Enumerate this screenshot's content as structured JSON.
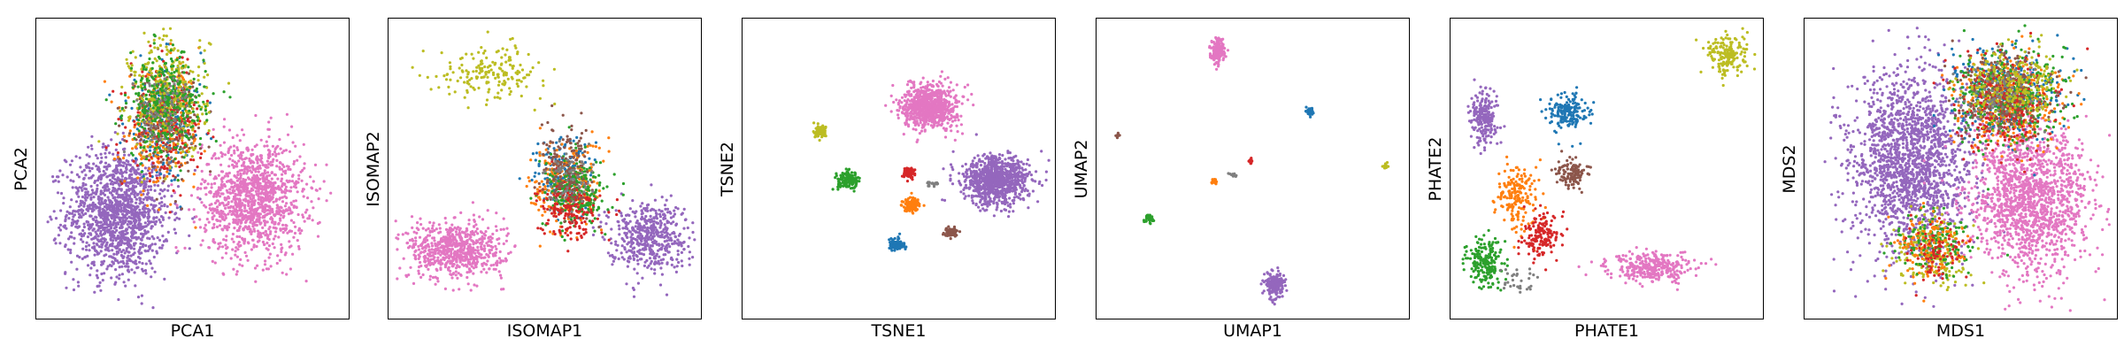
{
  "colors": {
    "blue": "#1f77b4",
    "orange": "#ff7f0e",
    "green": "#2ca02c",
    "red": "#d62728",
    "purple": "#9467bd",
    "brown": "#8c564b",
    "pink": "#e377c2",
    "gray": "#7f7f7f",
    "olive": "#bcbd22"
  },
  "chart_data": [
    {
      "type": "scatter",
      "xlabel": "PCA1",
      "ylabel": "PCA2",
      "grid": false,
      "xticks": [],
      "yticks": [],
      "xlim": [
        0,
        1
      ],
      "ylim": [
        0,
        1
      ],
      "clusters": [
        {
          "color": "purple",
          "cx": 0.25,
          "cy": 0.35,
          "sx": 0.085,
          "sy": 0.11,
          "n": 1400
        },
        {
          "color": "pink",
          "cx": 0.7,
          "cy": 0.4,
          "sx": 0.085,
          "sy": 0.1,
          "n": 1200
        },
        {
          "color": "blue",
          "cx": 0.4,
          "cy": 0.68,
          "sx": 0.065,
          "sy": 0.1,
          "n": 220
        },
        {
          "color": "orange",
          "cx": 0.4,
          "cy": 0.64,
          "sx": 0.065,
          "sy": 0.1,
          "n": 260
        },
        {
          "color": "red",
          "cx": 0.41,
          "cy": 0.66,
          "sx": 0.06,
          "sy": 0.09,
          "n": 220
        },
        {
          "color": "brown",
          "cx": 0.4,
          "cy": 0.68,
          "sx": 0.06,
          "sy": 0.09,
          "n": 200
        },
        {
          "color": "olive",
          "cx": 0.42,
          "cy": 0.76,
          "sx": 0.065,
          "sy": 0.11,
          "n": 320
        },
        {
          "color": "green",
          "cx": 0.41,
          "cy": 0.72,
          "sx": 0.065,
          "sy": 0.09,
          "n": 320
        },
        {
          "color": "gray",
          "cx": 0.4,
          "cy": 0.7,
          "sx": 0.05,
          "sy": 0.07,
          "n": 80
        }
      ]
    },
    {
      "type": "scatter",
      "xlabel": "ISOMAP1",
      "ylabel": "ISOMAP2",
      "grid": false,
      "xticks": [],
      "yticks": [],
      "xlim": [
        0,
        1
      ],
      "ylim": [
        0,
        1
      ],
      "clusters": [
        {
          "color": "olive",
          "cx": 0.32,
          "cy": 0.84,
          "sx": 0.09,
          "sy": 0.045,
          "n": 180
        },
        {
          "color": "pink",
          "cx": 0.2,
          "cy": 0.22,
          "sx": 0.08,
          "sy": 0.05,
          "n": 700
        },
        {
          "color": "purple",
          "cx": 0.84,
          "cy": 0.27,
          "sx": 0.065,
          "sy": 0.06,
          "n": 500
        },
        {
          "color": "blue",
          "cx": 0.56,
          "cy": 0.48,
          "sx": 0.05,
          "sy": 0.065,
          "n": 180
        },
        {
          "color": "orange",
          "cx": 0.57,
          "cy": 0.44,
          "sx": 0.06,
          "sy": 0.08,
          "n": 220
        },
        {
          "color": "green",
          "cx": 0.6,
          "cy": 0.42,
          "sx": 0.05,
          "sy": 0.06,
          "n": 260
        },
        {
          "color": "red",
          "cx": 0.58,
          "cy": 0.36,
          "sx": 0.05,
          "sy": 0.05,
          "n": 180
        },
        {
          "color": "brown",
          "cx": 0.57,
          "cy": 0.5,
          "sx": 0.04,
          "sy": 0.07,
          "n": 160
        },
        {
          "color": "gray",
          "cx": 0.58,
          "cy": 0.45,
          "sx": 0.04,
          "sy": 0.05,
          "n": 60
        }
      ]
    },
    {
      "type": "scatter",
      "xlabel": "TSNE1",
      "ylabel": "TSNE2",
      "grid": false,
      "xticks": [],
      "yticks": [],
      "xlim": [
        0,
        1
      ],
      "ylim": [
        0,
        1
      ],
      "clusters": [
        {
          "color": "pink",
          "cx": 0.6,
          "cy": 0.72,
          "sx": 0.045,
          "sy": 0.038,
          "n": 800
        },
        {
          "color": "purple",
          "cx": 0.82,
          "cy": 0.46,
          "sx": 0.055,
          "sy": 0.042,
          "n": 900
        },
        {
          "color": "olive",
          "cx": 0.24,
          "cy": 0.63,
          "sx": 0.012,
          "sy": 0.01,
          "n": 80
        },
        {
          "color": "green",
          "cx": 0.33,
          "cy": 0.46,
          "sx": 0.018,
          "sy": 0.015,
          "n": 140
        },
        {
          "color": "red",
          "cx": 0.53,
          "cy": 0.49,
          "sx": 0.011,
          "sy": 0.01,
          "n": 60
        },
        {
          "color": "gray",
          "cx": 0.61,
          "cy": 0.45,
          "sx": 0.01,
          "sy": 0.004,
          "n": 20
        },
        {
          "color": "orange",
          "cx": 0.54,
          "cy": 0.38,
          "sx": 0.016,
          "sy": 0.012,
          "n": 110
        },
        {
          "color": "brown",
          "cx": 0.67,
          "cy": 0.28,
          "sx": 0.011,
          "sy": 0.009,
          "n": 60
        },
        {
          "color": "blue",
          "cx": 0.49,
          "cy": 0.24,
          "sx": 0.013,
          "sy": 0.011,
          "n": 90
        }
      ]
    },
    {
      "type": "scatter",
      "xlabel": "UMAP1",
      "ylabel": "UMAP2",
      "grid": false,
      "xticks": [],
      "yticks": [],
      "xlim": [
        0,
        1
      ],
      "ylim": [
        0,
        1
      ],
      "clusters": [
        {
          "color": "pink",
          "cx": 0.38,
          "cy": 0.91,
          "sx": 0.012,
          "sy": 0.022,
          "n": 160
        },
        {
          "color": "purple",
          "cx": 0.57,
          "cy": 0.1,
          "sx": 0.016,
          "sy": 0.022,
          "n": 180
        },
        {
          "color": "blue",
          "cx": 0.69,
          "cy": 0.7,
          "sx": 0.006,
          "sy": 0.007,
          "n": 40
        },
        {
          "color": "brown",
          "cx": 0.05,
          "cy": 0.62,
          "sx": 0.003,
          "sy": 0.004,
          "n": 12
        },
        {
          "color": "olive",
          "cx": 0.94,
          "cy": 0.51,
          "sx": 0.004,
          "sy": 0.006,
          "n": 20
        },
        {
          "color": "red",
          "cx": 0.49,
          "cy": 0.53,
          "sx": 0.004,
          "sy": 0.005,
          "n": 14
        },
        {
          "color": "gray",
          "cx": 0.43,
          "cy": 0.48,
          "sx": 0.005,
          "sy": 0.003,
          "n": 10
        },
        {
          "color": "orange",
          "cx": 0.37,
          "cy": 0.46,
          "sx": 0.005,
          "sy": 0.006,
          "n": 22
        },
        {
          "color": "green",
          "cx": 0.15,
          "cy": 0.33,
          "sx": 0.007,
          "sy": 0.008,
          "n": 36
        }
      ]
    },
    {
      "type": "scatter",
      "xlabel": "PHATE1",
      "ylabel": "PHATE2",
      "grid": false,
      "xticks": [],
      "yticks": [],
      "xlim": [
        0,
        1
      ],
      "ylim": [
        0,
        1
      ],
      "clusters": [
        {
          "color": "olive",
          "cx": 0.9,
          "cy": 0.9,
          "sx": 0.035,
          "sy": 0.035,
          "n": 180
        },
        {
          "color": "purple",
          "cx": 0.09,
          "cy": 0.68,
          "sx": 0.022,
          "sy": 0.045,
          "n": 220
        },
        {
          "color": "blue",
          "cx": 0.37,
          "cy": 0.7,
          "sx": 0.03,
          "sy": 0.03,
          "n": 180
        },
        {
          "color": "brown",
          "cx": 0.38,
          "cy": 0.49,
          "sx": 0.025,
          "sy": 0.025,
          "n": 120
        },
        {
          "color": "orange",
          "cx": 0.2,
          "cy": 0.4,
          "sx": 0.035,
          "sy": 0.06,
          "n": 180
        },
        {
          "color": "red",
          "cx": 0.28,
          "cy": 0.27,
          "sx": 0.03,
          "sy": 0.035,
          "n": 160
        },
        {
          "color": "green",
          "cx": 0.09,
          "cy": 0.18,
          "sx": 0.03,
          "sy": 0.045,
          "n": 200
        },
        {
          "color": "gray",
          "cx": 0.2,
          "cy": 0.11,
          "sx": 0.03,
          "sy": 0.02,
          "n": 30
        },
        {
          "color": "pink",
          "cx": 0.65,
          "cy": 0.16,
          "sx": 0.07,
          "sy": 0.025,
          "n": 320
        }
      ]
    },
    {
      "type": "scatter",
      "xlabel": "MDS1",
      "ylabel": "MDS2",
      "grid": false,
      "xticks": [],
      "yticks": [],
      "xlim": [
        0,
        1
      ],
      "ylim": [
        0,
        1
      ],
      "clusters": [
        {
          "color": "purple",
          "cx": 0.33,
          "cy": 0.52,
          "sx": 0.1,
          "sy": 0.16,
          "n": 1800
        },
        {
          "color": "pink",
          "cx": 0.73,
          "cy": 0.4,
          "sx": 0.1,
          "sy": 0.13,
          "n": 1500
        },
        {
          "color": "blue",
          "cx": 0.65,
          "cy": 0.77,
          "sx": 0.09,
          "sy": 0.08,
          "n": 320
        },
        {
          "color": "orange",
          "cx": 0.66,
          "cy": 0.74,
          "sx": 0.09,
          "sy": 0.08,
          "n": 320
        },
        {
          "color": "green",
          "cx": 0.66,
          "cy": 0.76,
          "sx": 0.09,
          "sy": 0.08,
          "n": 360
        },
        {
          "color": "red",
          "cx": 0.65,
          "cy": 0.73,
          "sx": 0.08,
          "sy": 0.08,
          "n": 280
        },
        {
          "color": "brown",
          "cx": 0.64,
          "cy": 0.76,
          "sx": 0.08,
          "sy": 0.07,
          "n": 240
        },
        {
          "color": "olive",
          "cx": 0.66,
          "cy": 0.79,
          "sx": 0.08,
          "sy": 0.07,
          "n": 260
        },
        {
          "color": "gray",
          "cx": 0.63,
          "cy": 0.74,
          "sx": 0.07,
          "sy": 0.07,
          "n": 80
        },
        {
          "color": "olive",
          "cx": 0.4,
          "cy": 0.22,
          "sx": 0.06,
          "sy": 0.06,
          "n": 180
        },
        {
          "color": "green",
          "cx": 0.4,
          "cy": 0.24,
          "sx": 0.06,
          "sy": 0.06,
          "n": 160
        },
        {
          "color": "orange",
          "cx": 0.39,
          "cy": 0.23,
          "sx": 0.06,
          "sy": 0.06,
          "n": 120
        },
        {
          "color": "red",
          "cx": 0.41,
          "cy": 0.21,
          "sx": 0.05,
          "sy": 0.05,
          "n": 80
        }
      ]
    }
  ]
}
